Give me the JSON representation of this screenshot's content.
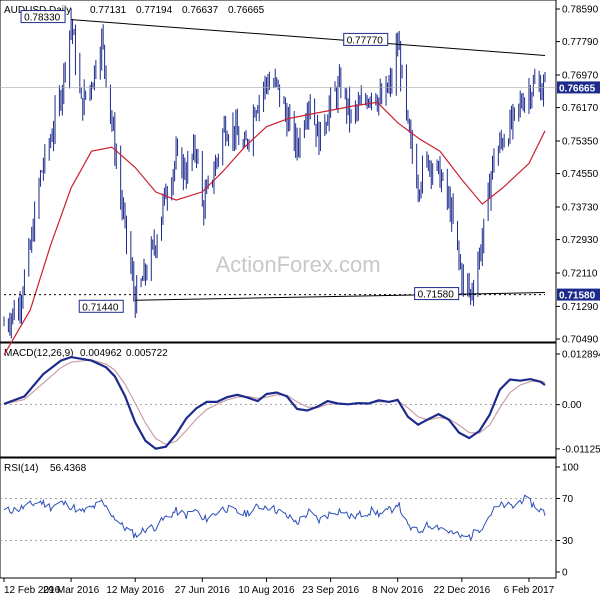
{
  "chart_data": [
    {
      "type": "ohlc",
      "panel": "price",
      "title": "AUDUSD,Daily",
      "header_values": [
        "0.77131",
        "0.77194",
        "0.76637",
        "0.76665"
      ],
      "watermark": "ActionForex.com",
      "yticks": [
        "0.78590",
        "0.77790",
        "0.76970",
        "0.76170",
        "0.75350",
        "0.74550",
        "0.73730",
        "0.72930",
        "0.72110",
        "0.71290",
        "0.70490"
      ],
      "ylim": [
        0.7049,
        0.7859
      ],
      "current_price": "0.76665",
      "support_label": "0.71580",
      "annotations": [
        "0.78330",
        "0.77770",
        "0.71440",
        "0.71580"
      ],
      "trendlines": [
        {
          "from": {
            "date": "2016-03-29",
            "value": 0.7833
          },
          "to": {
            "date": "2017-02-17",
            "value": 0.7745
          }
        },
        {
          "from": {
            "date": "2016-05-12",
            "value": 0.7144
          },
          "to": {
            "date": "2017-02-17",
            "value": 0.7163
          }
        },
        {
          "from": {
            "date": "2016-02-12",
            "value": 0.7158
          },
          "to": {
            "date": "2017-02-17",
            "value": 0.7158
          }
        }
      ],
      "ma_series": [
        [
          "2016-02-12",
          0.701
        ],
        [
          "2016-03-01",
          0.712
        ],
        [
          "2016-03-15",
          0.728
        ],
        [
          "2016-03-29",
          0.742
        ],
        [
          "2016-04-12",
          0.751
        ],
        [
          "2016-04-26",
          0.752
        ],
        [
          "2016-05-12",
          0.747
        ],
        [
          "2016-05-26",
          0.741
        ],
        [
          "2016-06-09",
          0.739
        ],
        [
          "2016-06-27",
          0.741
        ],
        [
          "2016-07-11",
          0.746
        ],
        [
          "2016-07-26",
          0.752
        ],
        [
          "2016-08-10",
          0.757
        ],
        [
          "2016-08-25",
          0.759
        ],
        [
          "2016-09-08",
          0.76
        ],
        [
          "2016-09-23",
          0.761
        ],
        [
          "2016-10-07",
          0.762
        ],
        [
          "2016-10-25",
          0.763
        ],
        [
          "2016-11-08",
          0.758
        ],
        [
          "2016-11-23",
          0.754
        ],
        [
          "2016-12-07",
          0.751
        ],
        [
          "2016-12-22",
          0.744
        ],
        [
          "2017-01-05",
          0.738
        ],
        [
          "2017-01-19",
          0.742
        ],
        [
          "2017-02-06",
          0.748
        ],
        [
          "2017-02-17",
          0.756
        ]
      ],
      "price_series": [
        [
          "2016-02-12",
          0.7085
        ],
        [
          "2016-02-22",
          0.713
        ],
        [
          "2016-03-01",
          0.727
        ],
        [
          "2016-03-08",
          0.745
        ],
        [
          "2016-03-15",
          0.754
        ],
        [
          "2016-03-22",
          0.765
        ],
        [
          "2016-03-29",
          0.7833
        ],
        [
          "2016-04-05",
          0.762
        ],
        [
          "2016-04-12",
          0.768
        ],
        [
          "2016-04-19",
          0.7785
        ],
        [
          "2016-04-26",
          0.758
        ],
        [
          "2016-05-03",
          0.737
        ],
        [
          "2016-05-12",
          0.7144
        ],
        [
          "2016-05-19",
          0.721
        ],
        [
          "2016-05-26",
          0.729
        ],
        [
          "2016-06-02",
          0.741
        ],
        [
          "2016-06-09",
          0.749
        ],
        [
          "2016-06-16",
          0.746
        ],
        [
          "2016-06-23",
          0.752
        ],
        [
          "2016-06-27",
          0.737
        ],
        [
          "2016-07-05",
          0.746
        ],
        [
          "2016-07-12",
          0.757
        ],
        [
          "2016-07-19",
          0.756
        ],
        [
          "2016-07-26",
          0.751
        ],
        [
          "2016-08-02",
          0.762
        ],
        [
          "2016-08-10",
          0.768
        ],
        [
          "2016-08-17",
          0.767
        ],
        [
          "2016-08-24",
          0.759
        ],
        [
          "2016-08-31",
          0.752
        ],
        [
          "2016-09-08",
          0.764
        ],
        [
          "2016-09-15",
          0.754
        ],
        [
          "2016-09-23",
          0.763
        ],
        [
          "2016-09-30",
          0.767
        ],
        [
          "2016-10-07",
          0.759
        ],
        [
          "2016-10-14",
          0.762
        ],
        [
          "2016-10-21",
          0.766
        ],
        [
          "2016-10-28",
          0.763
        ],
        [
          "2016-11-04",
          0.768
        ],
        [
          "2016-11-08",
          0.7777
        ],
        [
          "2016-11-15",
          0.756
        ],
        [
          "2016-11-22",
          0.743
        ],
        [
          "2016-11-29",
          0.749
        ],
        [
          "2016-12-07",
          0.745
        ],
        [
          "2016-12-14",
          0.737
        ],
        [
          "2016-12-22",
          0.72
        ],
        [
          "2016-12-28",
          0.7158
        ],
        [
          "2017-01-05",
          0.729
        ],
        [
          "2017-01-12",
          0.748
        ],
        [
          "2017-01-19",
          0.754
        ],
        [
          "2017-01-26",
          0.758
        ],
        [
          "2017-02-02",
          0.764
        ],
        [
          "2017-02-09",
          0.767
        ],
        [
          "2017-02-17",
          0.76665
        ]
      ]
    },
    {
      "type": "line",
      "panel": "macd",
      "title": "MACD(12,26,9)",
      "header_values": [
        "0.004962",
        "0.005722"
      ],
      "yticks": [
        "0.012894",
        "0.00",
        "-0.011253"
      ],
      "ylim": [
        -0.0123,
        0.0139
      ],
      "series": [
        {
          "values": [
            [
              "2016-02-12",
              0.0002
            ],
            [
              "2016-02-26",
              0.0021
            ],
            [
              "2016-03-10",
              0.0078
            ],
            [
              "2016-03-22",
              0.0112
            ],
            [
              "2016-03-29",
              0.0121
            ],
            [
              "2016-04-12",
              0.0112
            ],
            [
              "2016-04-22",
              0.0095
            ],
            [
              "2016-04-28",
              0.0072
            ],
            [
              "2016-05-05",
              0.0022
            ],
            [
              "2016-05-12",
              -0.0045
            ],
            [
              "2016-05-19",
              -0.0092
            ],
            [
              "2016-05-26",
              -0.0112
            ],
            [
              "2016-06-02",
              -0.0107
            ],
            [
              "2016-06-09",
              -0.0076
            ],
            [
              "2016-06-16",
              -0.0035
            ],
            [
              "2016-06-23",
              -0.0009
            ],
            [
              "2016-06-30",
              0.0007
            ],
            [
              "2016-07-07",
              0.0007
            ],
            [
              "2016-07-14",
              0.0019
            ],
            [
              "2016-07-21",
              0.0025
            ],
            [
              "2016-07-28",
              0.0018
            ],
            [
              "2016-08-04",
              0.0009
            ],
            [
              "2016-08-10",
              0.0027
            ],
            [
              "2016-08-17",
              0.0031
            ],
            [
              "2016-08-24",
              0.0021
            ],
            [
              "2016-08-31",
              -0.0011
            ],
            [
              "2016-09-07",
              -0.0015
            ],
            [
              "2016-09-14",
              -0.0005
            ],
            [
              "2016-09-21",
              0.0009
            ],
            [
              "2016-09-28",
              0.0003
            ],
            [
              "2016-10-05",
              0.0001
            ],
            [
              "2016-10-12",
              0.0004
            ],
            [
              "2016-10-19",
              0.0003
            ],
            [
              "2016-10-26",
              0.0011
            ],
            [
              "2016-11-02",
              0.0007
            ],
            [
              "2016-11-08",
              0.0012
            ],
            [
              "2016-11-15",
              -0.0031
            ],
            [
              "2016-11-22",
              -0.0051
            ],
            [
              "2016-11-29",
              -0.0037
            ],
            [
              "2016-12-06",
              -0.0024
            ],
            [
              "2016-12-13",
              -0.0038
            ],
            [
              "2016-12-20",
              -0.0071
            ],
            [
              "2016-12-27",
              -0.0085
            ],
            [
              "2017-01-03",
              -0.0067
            ],
            [
              "2017-01-10",
              -0.0026
            ],
            [
              "2017-01-17",
              0.0038
            ],
            [
              "2017-01-24",
              0.0064
            ],
            [
              "2017-01-31",
              0.0061
            ],
            [
              "2017-02-07",
              0.0065
            ],
            [
              "2017-02-14",
              0.0058
            ],
            [
              "2017-02-17",
              0.005
            ]
          ]
        },
        {
          "values": [
            [
              "2016-02-12",
              0.0001
            ],
            [
              "2016-02-26",
              0.0013
            ],
            [
              "2016-03-10",
              0.0055
            ],
            [
              "2016-03-22",
              0.0094
            ],
            [
              "2016-03-29",
              0.0108
            ],
            [
              "2016-04-12",
              0.0114
            ],
            [
              "2016-04-22",
              0.0103
            ],
            [
              "2016-04-28",
              0.0088
            ],
            [
              "2016-05-05",
              0.0052
            ],
            [
              "2016-05-12",
              0.0004
            ],
            [
              "2016-05-19",
              -0.0047
            ],
            [
              "2016-05-26",
              -0.0086
            ],
            [
              "2016-06-02",
              -0.0101
            ],
            [
              "2016-06-09",
              -0.0093
            ],
            [
              "2016-06-16",
              -0.0066
            ],
            [
              "2016-06-23",
              -0.0036
            ],
            [
              "2016-06-30",
              -0.0012
            ],
            [
              "2016-07-07",
              0.0001
            ],
            [
              "2016-07-14",
              0.0012
            ],
            [
              "2016-07-21",
              0.0019
            ],
            [
              "2016-07-28",
              0.0021
            ],
            [
              "2016-08-04",
              0.0016
            ],
            [
              "2016-08-10",
              0.0019
            ],
            [
              "2016-08-17",
              0.0025
            ],
            [
              "2016-08-24",
              0.0024
            ],
            [
              "2016-08-31",
              0.0007
            ],
            [
              "2016-09-07",
              -0.0006
            ],
            [
              "2016-09-14",
              -0.0008
            ],
            [
              "2016-09-21",
              0.0001
            ],
            [
              "2016-09-28",
              0.0003
            ],
            [
              "2016-10-05",
              0.0002
            ],
            [
              "2016-10-12",
              0.0003
            ],
            [
              "2016-10-19",
              0.0004
            ],
            [
              "2016-10-26",
              0.0007
            ],
            [
              "2016-11-02",
              0.0008
            ],
            [
              "2016-11-08",
              0.001
            ],
            [
              "2016-11-15",
              -0.0008
            ],
            [
              "2016-11-22",
              -0.0031
            ],
            [
              "2016-11-29",
              -0.0039
            ],
            [
              "2016-12-06",
              -0.0033
            ],
            [
              "2016-12-13",
              -0.0036
            ],
            [
              "2016-12-20",
              -0.0052
            ],
            [
              "2016-12-27",
              -0.0071
            ],
            [
              "2017-01-03",
              -0.0072
            ],
            [
              "2017-01-10",
              -0.0052
            ],
            [
              "2017-01-17",
              -0.0008
            ],
            [
              "2017-01-24",
              0.0031
            ],
            [
              "2017-01-31",
              0.005
            ],
            [
              "2017-02-07",
              0.0059
            ],
            [
              "2017-02-14",
              0.006
            ],
            [
              "2017-02-17",
              0.0057
            ]
          ]
        }
      ]
    },
    {
      "type": "line",
      "panel": "rsi",
      "title": "RSI(14)",
      "header_values": [
        "56.4368"
      ],
      "yticks": [
        "100",
        "70",
        "30",
        "0"
      ],
      "ylim": [
        0,
        100
      ],
      "reference_levels": [
        70,
        30
      ],
      "series": [
        {
          "values": [
            [
              "2016-02-12",
              58
            ],
            [
              "2016-02-22",
              60
            ],
            [
              "2016-03-01",
              64
            ],
            [
              "2016-03-08",
              67
            ],
            [
              "2016-03-15",
              62
            ],
            [
              "2016-03-22",
              66
            ],
            [
              "2016-03-29",
              63
            ],
            [
              "2016-04-05",
              57
            ],
            [
              "2016-04-12",
              61
            ],
            [
              "2016-04-19",
              66
            ],
            [
              "2016-04-26",
              55
            ],
            [
              "2016-05-03",
              44
            ],
            [
              "2016-05-12",
              35
            ],
            [
              "2016-05-19",
              41
            ],
            [
              "2016-05-26",
              43
            ],
            [
              "2016-06-02",
              52
            ],
            [
              "2016-06-09",
              58
            ],
            [
              "2016-06-16",
              54
            ],
            [
              "2016-06-23",
              59
            ],
            [
              "2016-06-27",
              49
            ],
            [
              "2016-07-05",
              55
            ],
            [
              "2016-07-12",
              61
            ],
            [
              "2016-07-19",
              58
            ],
            [
              "2016-07-26",
              55
            ],
            [
              "2016-08-02",
              61
            ],
            [
              "2016-08-10",
              63
            ],
            [
              "2016-08-17",
              59
            ],
            [
              "2016-08-24",
              53
            ],
            [
              "2016-08-31",
              47
            ],
            [
              "2016-09-08",
              57
            ],
            [
              "2016-09-15",
              49
            ],
            [
              "2016-09-23",
              56
            ],
            [
              "2016-09-30",
              59
            ],
            [
              "2016-10-07",
              52
            ],
            [
              "2016-10-14",
              55
            ],
            [
              "2016-10-21",
              58
            ],
            [
              "2016-10-28",
              55
            ],
            [
              "2016-11-04",
              60
            ],
            [
              "2016-11-08",
              66
            ],
            [
              "2016-11-15",
              43
            ],
            [
              "2016-11-22",
              38
            ],
            [
              "2016-11-29",
              45
            ],
            [
              "2016-12-07",
              43
            ],
            [
              "2016-12-14",
              38
            ],
            [
              "2016-12-22",
              33
            ],
            [
              "2016-12-28",
              34
            ],
            [
              "2017-01-05",
              44
            ],
            [
              "2017-01-12",
              58
            ],
            [
              "2017-01-19",
              64
            ],
            [
              "2017-01-26",
              62
            ],
            [
              "2017-02-02",
              70
            ],
            [
              "2017-02-09",
              64
            ],
            [
              "2017-02-17",
              56
            ]
          ]
        }
      ]
    }
  ],
  "xticks": [
    "12 Feb 2016",
    "29 Mar 2016",
    "12 May 2016",
    "27 Jun 2016",
    "10 Aug 2016",
    "23 Sep 2016",
    "8 Nov 2016",
    "22 Dec 2016",
    "6 Feb 2017"
  ],
  "colors": {
    "bars": "#1c2a8c",
    "moving_average": "#cc2030",
    "macd_line": "#1c2a8c",
    "signal_line": "#c8a0a6",
    "rsi_line": "#2d4fb8",
    "price_tag": "#1c2a8c",
    "trendline": "#000000"
  }
}
